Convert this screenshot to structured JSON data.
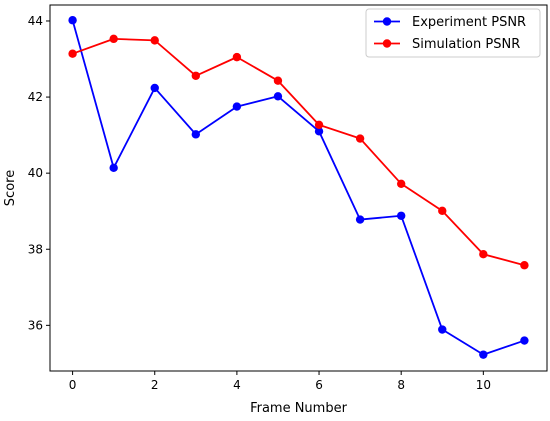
{
  "chart_data": {
    "type": "line",
    "title": "",
    "xlabel": "Frame Number",
    "ylabel": "Score",
    "xlim": [
      -0.55,
      11.55
    ],
    "ylim": [
      34.8,
      44.42
    ],
    "x": [
      0,
      1,
      2,
      3,
      4,
      5,
      6,
      7,
      8,
      9,
      10,
      11
    ],
    "x_ticks": [
      0,
      2,
      4,
      6,
      8,
      10
    ],
    "y_ticks": [
      36,
      38,
      40,
      42,
      44
    ],
    "grid": false,
    "legend_position": "top-right",
    "series": [
      {
        "name": "Experiment PSNR",
        "color": "#0000ff",
        "marker": "circle",
        "values": [
          44.02,
          40.14,
          42.24,
          41.02,
          41.75,
          42.02,
          41.1,
          38.78,
          38.88,
          35.89,
          35.23,
          35.6
        ]
      },
      {
        "name": "Simulation PSNR",
        "color": "#ff0000",
        "marker": "circle",
        "values": [
          43.14,
          43.53,
          43.49,
          42.56,
          43.05,
          42.43,
          41.27,
          40.91,
          39.72,
          39.01,
          37.87,
          37.58
        ]
      }
    ]
  }
}
